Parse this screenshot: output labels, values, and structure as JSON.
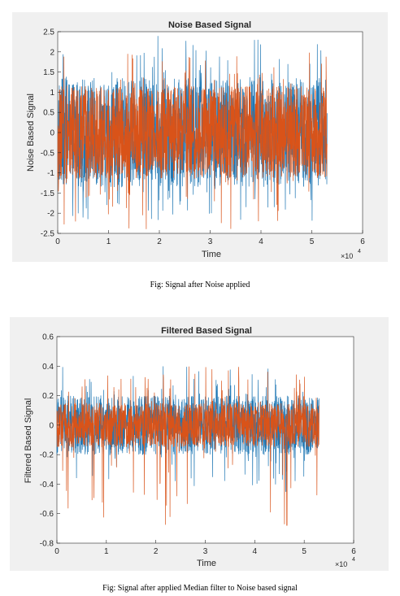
{
  "colors": {
    "series_1": "#1f77b4",
    "series_2": "#d95319",
    "axes": "#262626",
    "grid": "#e0e0e0",
    "figure_bg": "#f0f0f0",
    "plot_bg": "#ffffff"
  },
  "captions": {
    "figure1": "Fig: Signal after Noise applied",
    "figure2": "Fig: Signal after applied Median filter to Noise based signal"
  },
  "chart_data": [
    {
      "type": "line",
      "title": "Noise Based Signal",
      "xlabel": "Time",
      "ylabel": "Noise Based Signal",
      "x_exponent_label": "×10",
      "x_exponent_power": "4",
      "xlim": [
        0,
        6
      ],
      "ylim": [
        -2.5,
        2.5
      ],
      "xticks": [
        "0",
        "1",
        "2",
        "3",
        "4",
        "5",
        "6"
      ],
      "yticks": [
        "-2.5",
        "-2",
        "-1.5",
        "-1",
        "-0.5",
        "0",
        "0.5",
        "1",
        "1.5",
        "2",
        "2.5"
      ],
      "x_range": [
        0,
        5.3
      ],
      "grid": false,
      "series": [
        {
          "color_key": "series_1",
          "typical_range": [
            -1.35,
            1.35
          ],
          "peak_range": [
            -2.2,
            2.4
          ]
        },
        {
          "color_key": "series_2",
          "typical_range": [
            -1.15,
            1.15
          ],
          "peak_range": [
            -2.45,
            2.0
          ]
        }
      ]
    },
    {
      "type": "line",
      "title": "Filtered Based Signal",
      "xlabel": "Time",
      "ylabel": "Filtered Based Signal",
      "x_exponent_label": "×10",
      "x_exponent_power": "4",
      "xlim": [
        0,
        6
      ],
      "ylim": [
        -0.8,
        0.6
      ],
      "xticks": [
        "0",
        "1",
        "2",
        "3",
        "4",
        "5",
        "6"
      ],
      "yticks": [
        "-0.8",
        "-0.6",
        "-0.4",
        "-0.2",
        "0",
        "0.2",
        "0.4",
        "0.6"
      ],
      "x_range": [
        0,
        5.3
      ],
      "grid": false,
      "series": [
        {
          "color_key": "series_1",
          "typical_range": [
            -0.2,
            0.2
          ],
          "peak_range": [
            -0.42,
            0.4
          ]
        },
        {
          "color_key": "series_2",
          "typical_range": [
            -0.15,
            0.15
          ],
          "peak_range": [
            -0.68,
            0.4
          ]
        }
      ]
    }
  ]
}
